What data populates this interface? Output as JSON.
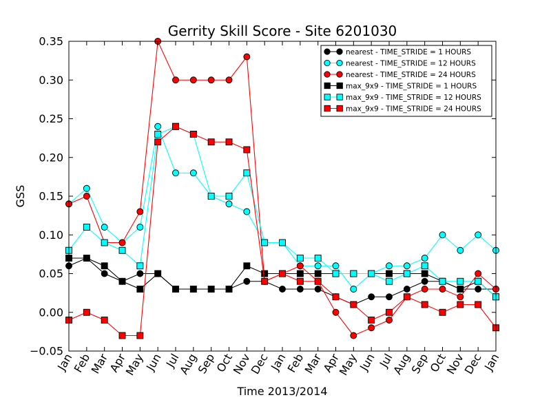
{
  "chart_data": {
    "type": "line",
    "title": "Gerrity Skill Score - Site 6201030",
    "xlabel": "Time 2013/2014",
    "ylabel": "GSS",
    "ylim": [
      -0.05,
      0.35
    ],
    "yticks": [
      "−0.05",
      "0.00",
      "0.05",
      "0.10",
      "0.15",
      "0.20",
      "0.25",
      "0.30",
      "0.35"
    ],
    "categories": [
      "Jan",
      "Feb",
      "Mar",
      "Apr",
      "May",
      "Jun",
      "Jul",
      "Aug",
      "Sep",
      "Oct",
      "Nov",
      "Dec",
      "Jan",
      "Feb",
      "Mar",
      "Apr",
      "May",
      "Jun",
      "Jul",
      "Aug",
      "Sep",
      "Oct",
      "Nov",
      "Dec",
      "Jan"
    ],
    "grid": false,
    "legend_position": "top-right",
    "series": [
      {
        "name": "nearest - TIME_STRIDE = 1 HOURS",
        "color": "#000000",
        "marker": "circle",
        "values": [
          0.06,
          0.07,
          0.05,
          0.04,
          0.05,
          0.05,
          0.03,
          0.03,
          0.03,
          0.03,
          0.04,
          0.04,
          0.03,
          0.03,
          0.03,
          0.02,
          0.01,
          0.02,
          0.02,
          0.03,
          0.04,
          0.04,
          0.03,
          0.03,
          0.03
        ]
      },
      {
        "name": "nearest - TIME_STRIDE = 12 HOURS",
        "color": "#00ffff",
        "marker": "circle",
        "values": [
          0.14,
          0.16,
          0.11,
          0.09,
          0.11,
          0.24,
          0.18,
          0.18,
          0.15,
          0.14,
          0.13,
          0.09,
          0.09,
          0.06,
          0.06,
          0.06,
          0.03,
          0.05,
          0.06,
          0.06,
          0.07,
          0.1,
          0.08,
          0.1,
          0.08
        ]
      },
      {
        "name": "nearest - TIME_STRIDE = 24 HOURS",
        "color": "#ff0000",
        "marker": "circle",
        "values": [
          0.14,
          0.15,
          0.09,
          0.09,
          0.13,
          0.35,
          0.3,
          0.3,
          0.3,
          0.3,
          0.33,
          0.04,
          0.05,
          0.06,
          0.04,
          0.0,
          -0.03,
          -0.02,
          -0.01,
          0.02,
          0.03,
          0.03,
          0.02,
          0.05,
          0.03
        ]
      },
      {
        "name": "max_9x9 - TIME_STRIDE = 1 HOURS",
        "color": "#000000",
        "marker": "square",
        "values": [
          0.07,
          0.07,
          0.06,
          0.04,
          0.03,
          0.05,
          0.03,
          0.03,
          0.03,
          0.03,
          0.06,
          0.05,
          0.05,
          0.05,
          0.05,
          0.05,
          0.05,
          0.05,
          0.05,
          0.05,
          0.05,
          0.04,
          0.03,
          0.04,
          0.02
        ]
      },
      {
        "name": "max_9x9 - TIME_STRIDE = 12 HOURS",
        "color": "#00ffff",
        "marker": "square",
        "values": [
          0.08,
          0.11,
          0.09,
          0.08,
          0.06,
          0.23,
          0.24,
          0.23,
          0.15,
          0.15,
          0.18,
          0.09,
          0.09,
          0.07,
          0.07,
          0.05,
          0.05,
          0.05,
          0.04,
          0.05,
          0.06,
          0.04,
          0.04,
          0.04,
          0.02
        ]
      },
      {
        "name": "max_9x9 - TIME_STRIDE = 24 HOURS",
        "color": "#ff0000",
        "marker": "square",
        "values": [
          -0.01,
          0.0,
          -0.01,
          -0.03,
          -0.03,
          0.22,
          0.24,
          0.23,
          0.22,
          0.22,
          0.21,
          0.04,
          0.05,
          0.04,
          0.04,
          0.02,
          0.01,
          -0.01,
          0.0,
          0.02,
          0.01,
          0.0,
          0.01,
          0.01,
          -0.02
        ]
      }
    ]
  }
}
